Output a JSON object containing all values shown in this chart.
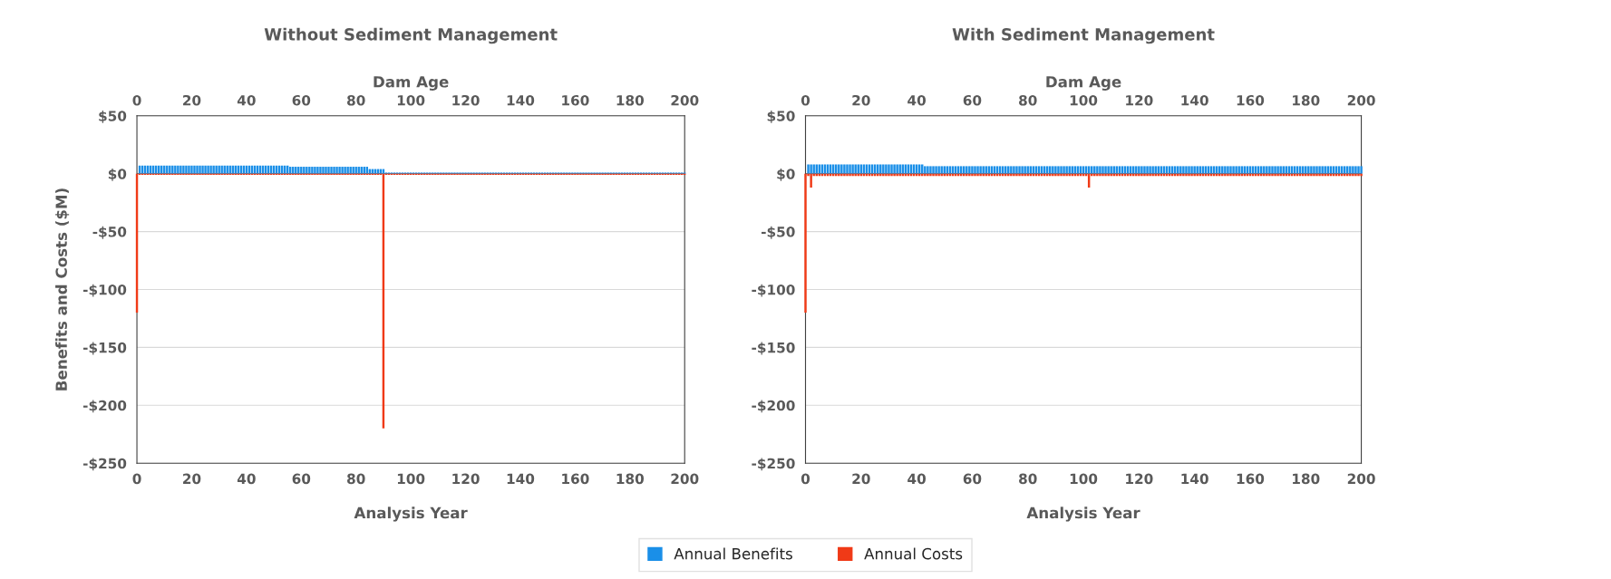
{
  "chart_data": [
    {
      "type": "bar",
      "title": "Without Sediment Management",
      "xlabel": "Analysis Year",
      "x2label": "Dam Age",
      "ylabel": "Benefits and Costs ($M)",
      "x": [
        0,
        1,
        2,
        3,
        4,
        5,
        6,
        7,
        8,
        9,
        10,
        11,
        12,
        13,
        14,
        15,
        16,
        17,
        18,
        19,
        20,
        21,
        22,
        23,
        24,
        25,
        26,
        27,
        28,
        29,
        30,
        31,
        32,
        33,
        34,
        35,
        36,
        37,
        38,
        39,
        40,
        41,
        42,
        43,
        44,
        45,
        46,
        47,
        48,
        49,
        50,
        51,
        52,
        53,
        54,
        55,
        56,
        57,
        58,
        59,
        60,
        61,
        62,
        63,
        64,
        65,
        66,
        67,
        68,
        69,
        70,
        71,
        72,
        73,
        74,
        75,
        76,
        77,
        78,
        79,
        80,
        81,
        82,
        83,
        84,
        85,
        86,
        87,
        88,
        89,
        90,
        91,
        92,
        93,
        94,
        95,
        96,
        97,
        98,
        99,
        100,
        101,
        102,
        103,
        104,
        105,
        106,
        107,
        108,
        109,
        110,
        111,
        112,
        113,
        114,
        115,
        116,
        117,
        118,
        119,
        120,
        121,
        122,
        123,
        124,
        125,
        126,
        127,
        128,
        129,
        130,
        131,
        132,
        133,
        134,
        135,
        136,
        137,
        138,
        139,
        140,
        141,
        142,
        143,
        144,
        145,
        146,
        147,
        148,
        149,
        150,
        151,
        152,
        153,
        154,
        155,
        156,
        157,
        158,
        159,
        160,
        161,
        162,
        163,
        164,
        165,
        166,
        167,
        168,
        169,
        170,
        171,
        172,
        173,
        174,
        175,
        176,
        177,
        178,
        179,
        180,
        181,
        182,
        183,
        184,
        185,
        186,
        187,
        188,
        189,
        190,
        191,
        192,
        193,
        194,
        195,
        196,
        197,
        198,
        199,
        200
      ],
      "series": [
        {
          "name": "Annual Benefits",
          "color": "#1a8fe8",
          "values": [
            null,
            7,
            7,
            7,
            7,
            7,
            7,
            7,
            7,
            7,
            7,
            7,
            7,
            7,
            7,
            7,
            7,
            7,
            7,
            7,
            7,
            7,
            7,
            7,
            7,
            7,
            7,
            7,
            7,
            7,
            7,
            7,
            7,
            7,
            7,
            7,
            7,
            7,
            7,
            7,
            7,
            7,
            7,
            7,
            7,
            7,
            7,
            7,
            7,
            7,
            7,
            7,
            7,
            7,
            7,
            7,
            6,
            6,
            6,
            6,
            6,
            6,
            6,
            6,
            6,
            6,
            6,
            6,
            6,
            6,
            6,
            6,
            6,
            6,
            6,
            6,
            6,
            6,
            6,
            6,
            6,
            6,
            6,
            6,
            6,
            4,
            4,
            4,
            4,
            4,
            4,
            1,
            1,
            1,
            1,
            1,
            1,
            1,
            1,
            1,
            1,
            1,
            1,
            1,
            1,
            1,
            1,
            1,
            1,
            1,
            1,
            1,
            1,
            1,
            1,
            1,
            1,
            1,
            1,
            1,
            1,
            1,
            1,
            1,
            1,
            1,
            1,
            1,
            1,
            1,
            1,
            1,
            1,
            1,
            1,
            1,
            1,
            1,
            1,
            1,
            1,
            1,
            1,
            1,
            1,
            1,
            1,
            1,
            1,
            1,
            1,
            1,
            1,
            1,
            1,
            1,
            1,
            1,
            1,
            1,
            1,
            1,
            1,
            1,
            1,
            1,
            1,
            1,
            1,
            1,
            1,
            1,
            1,
            1,
            1,
            1,
            1,
            1,
            1,
            1,
            1,
            1,
            1,
            1,
            1,
            1,
            1,
            1,
            1,
            1,
            1,
            1,
            1,
            1,
            1,
            1,
            1,
            1,
            1,
            1,
            1
          ]
        },
        {
          "name": "Annual Costs",
          "color": "#f03a17",
          "values": [
            -120,
            -1,
            -1,
            -1,
            -1,
            -1,
            -1,
            -1,
            -1,
            -1,
            -1,
            -1,
            -1,
            -1,
            -1,
            -1,
            -1,
            -1,
            -1,
            -1,
            -1,
            -1,
            -1,
            -1,
            -1,
            -1,
            -1,
            -1,
            -1,
            -1,
            -1,
            -1,
            -1,
            -1,
            -1,
            -1,
            -1,
            -1,
            -1,
            -1,
            -1,
            -1,
            -1,
            -1,
            -1,
            -1,
            -1,
            -1,
            -1,
            -1,
            -1,
            -1,
            -1,
            -1,
            -1,
            -1,
            -1,
            -1,
            -1,
            -1,
            -1,
            -1,
            -1,
            -1,
            -1,
            -1,
            -1,
            -1,
            -1,
            -1,
            -1,
            -1,
            -1,
            -1,
            -1,
            -1,
            -1,
            -1,
            -1,
            -1,
            -1,
            -1,
            -1,
            -1,
            -1,
            -1,
            -1,
            -1,
            -1,
            -1,
            -220,
            -1,
            -1,
            -1,
            -1,
            -1,
            -1,
            -1,
            -1,
            -1,
            -1,
            -1,
            -1,
            -1,
            -1,
            -1,
            -1,
            -1,
            -1,
            -1,
            -1,
            -1,
            -1,
            -1,
            -1,
            -1,
            -1,
            -1,
            -1,
            -1,
            -1,
            -1,
            -1,
            -1,
            -1,
            -1,
            -1,
            -1,
            -1,
            -1,
            -1,
            -1,
            -1,
            -1,
            -1,
            -1,
            -1,
            -1,
            -1,
            -1,
            -1,
            -1,
            -1,
            -1,
            -1,
            -1,
            -1,
            -1,
            -1,
            -1,
            -1,
            -1,
            -1,
            -1,
            -1,
            -1,
            -1,
            -1,
            -1,
            -1,
            -1,
            -1,
            -1,
            -1,
            -1,
            -1,
            -1,
            -1,
            -1,
            -1,
            -1,
            -1,
            -1,
            -1,
            -1,
            -1,
            -1,
            -1,
            -1,
            -1,
            -1,
            -1,
            -1,
            -1,
            -1,
            -1,
            -1,
            -1,
            -1,
            -1,
            -1,
            -1,
            -1,
            -1,
            -1,
            -1,
            -1,
            -1,
            -1,
            -1,
            -1
          ]
        }
      ],
      "xlim": [
        0,
        200
      ],
      "xticks": [
        0,
        20,
        40,
        60,
        80,
        100,
        120,
        140,
        160,
        180,
        200
      ],
      "x2lim": [
        0,
        200
      ],
      "x2ticks": [
        0,
        20,
        40,
        60,
        80,
        100,
        120,
        140,
        160,
        180,
        200
      ],
      "ylim": [
        -250,
        50
      ],
      "yticks": [
        {
          "value": -250,
          "label": "-$250"
        },
        {
          "value": -200,
          "label": "-$200"
        },
        {
          "value": -150,
          "label": "-$150"
        },
        {
          "value": -100,
          "label": "-$100"
        },
        {
          "value": -50,
          "label": "-$50"
        },
        {
          "value": 0,
          "label": "$0"
        },
        {
          "value": 50,
          "label": "$50"
        }
      ],
      "grid": "y",
      "legend": "bottom",
      "stacked": true
    },
    {
      "type": "bar",
      "title": "With Sediment Management",
      "xlabel": "Analysis Year",
      "x2label": "Dam Age",
      "x": [
        0,
        1,
        2,
        3,
        4,
        5,
        6,
        7,
        8,
        9,
        10,
        11,
        12,
        13,
        14,
        15,
        16,
        17,
        18,
        19,
        20,
        21,
        22,
        23,
        24,
        25,
        26,
        27,
        28,
        29,
        30,
        31,
        32,
        33,
        34,
        35,
        36,
        37,
        38,
        39,
        40,
        41,
        42,
        43,
        44,
        45,
        46,
        47,
        48,
        49,
        50,
        51,
        52,
        53,
        54,
        55,
        56,
        57,
        58,
        59,
        60,
        61,
        62,
        63,
        64,
        65,
        66,
        67,
        68,
        69,
        70,
        71,
        72,
        73,
        74,
        75,
        76,
        77,
        78,
        79,
        80,
        81,
        82,
        83,
        84,
        85,
        86,
        87,
        88,
        89,
        90,
        91,
        92,
        93,
        94,
        95,
        96,
        97,
        98,
        99,
        100,
        101,
        102,
        103,
        104,
        105,
        106,
        107,
        108,
        109,
        110,
        111,
        112,
        113,
        114,
        115,
        116,
        117,
        118,
        119,
        120,
        121,
        122,
        123,
        124,
        125,
        126,
        127,
        128,
        129,
        130,
        131,
        132,
        133,
        134,
        135,
        136,
        137,
        138,
        139,
        140,
        141,
        142,
        143,
        144,
        145,
        146,
        147,
        148,
        149,
        150,
        151,
        152,
        153,
        154,
        155,
        156,
        157,
        158,
        159,
        160,
        161,
        162,
        163,
        164,
        165,
        166,
        167,
        168,
        169,
        170,
        171,
        172,
        173,
        174,
        175,
        176,
        177,
        178,
        179,
        180,
        181,
        182,
        183,
        184,
        185,
        186,
        187,
        188,
        189,
        190,
        191,
        192,
        193,
        194,
        195,
        196,
        197,
        198,
        199,
        200
      ],
      "series": [
        {
          "name": "Annual Benefits",
          "color": "#1a8fe8",
          "values": [
            null,
            8,
            8,
            8,
            8,
            8,
            8,
            8,
            8,
            8,
            8,
            8,
            8,
            8,
            8,
            8,
            8,
            8,
            8,
            8,
            8,
            8,
            8,
            8,
            8,
            8,
            8,
            8,
            8,
            8,
            8,
            8,
            8,
            8,
            8,
            8,
            8,
            8,
            8,
            8,
            8,
            8,
            8,
            6.5,
            6.5,
            6.5,
            6.5,
            6.5,
            6.5,
            6.5,
            6.5,
            6.5,
            6.5,
            6.5,
            6.5,
            6.5,
            6.5,
            6.5,
            6.5,
            6.5,
            6.5,
            6.5,
            6.5,
            6.5,
            6.5,
            6.5,
            6.5,
            6.5,
            6.5,
            6.5,
            6.5,
            6.5,
            6.5,
            6.5,
            6.5,
            6.5,
            6.5,
            6.5,
            6.5,
            6.5,
            6.5,
            6.5,
            6.5,
            6.5,
            6.5,
            6.5,
            6.5,
            6.5,
            6.5,
            6.5,
            6.5,
            6.5,
            6.5,
            6.5,
            6.5,
            6.5,
            6.5,
            6.5,
            6.5,
            6.5,
            6.5,
            6.5,
            6.5,
            6.5,
            6.5,
            6.5,
            6.5,
            6.5,
            6.5,
            6.5,
            6.5,
            6.5,
            6.5,
            6.5,
            6.5,
            6.5,
            6.5,
            6.5,
            6.5,
            6.5,
            6.5,
            6.5,
            6.5,
            6.5,
            6.5,
            6.5,
            6.5,
            6.5,
            6.5,
            6.5,
            6.5,
            6.5,
            6.5,
            6.5,
            6.5,
            6.5,
            6.5,
            6.5,
            6.5,
            6.5,
            6.5,
            6.5,
            6.5,
            6.5,
            6.5,
            6.5,
            6.5,
            6.5,
            6.5,
            6.5,
            6.5,
            6.5,
            6.5,
            6.5,
            6.5,
            6.5,
            6.5,
            6.5,
            6.5,
            6.5,
            6.5,
            6.5,
            6.5,
            6.5,
            6.5,
            6.5,
            6.5,
            6.5,
            6.5,
            6.5,
            6.5,
            6.5,
            6.5,
            6.5,
            6.5,
            6.5,
            6.5,
            6.5,
            6.5,
            6.5,
            6.5,
            6.5,
            6.5,
            6.5,
            6.5,
            6.5,
            6.5,
            6.5,
            6.5,
            6.5,
            6.5,
            6.5,
            6.5,
            6.5,
            6.5,
            6.5,
            6.5,
            6.5,
            6.5,
            6.5,
            6.5
          ]
        },
        {
          "name": "Annual Costs",
          "color": "#f03a17",
          "values": [
            -120,
            -2,
            -12,
            -2,
            -2,
            -2,
            -2,
            -2,
            -2,
            -2,
            -2,
            -2,
            -2,
            -2,
            -2,
            -2,
            -2,
            -2,
            -2,
            -2,
            -2,
            -2,
            -2,
            -2,
            -2,
            -2,
            -2,
            -2,
            -2,
            -2,
            -2,
            -2,
            -2,
            -2,
            -2,
            -2,
            -2,
            -2,
            -2,
            -2,
            -2,
            -2,
            -2,
            -2,
            -2,
            -2,
            -2,
            -2,
            -2,
            -2,
            -2,
            -2,
            -2,
            -2,
            -2,
            -2,
            -2,
            -2,
            -2,
            -2,
            -2,
            -2,
            -2,
            -2,
            -2,
            -2,
            -2,
            -2,
            -2,
            -2,
            -2,
            -2,
            -2,
            -2,
            -2,
            -2,
            -2,
            -2,
            -2,
            -2,
            -2,
            -2,
            -2,
            -2,
            -2,
            -2,
            -2,
            -2,
            -2,
            -2,
            -2,
            -2,
            -2,
            -2,
            -2,
            -2,
            -2,
            -2,
            -2,
            -2,
            -2,
            -2,
            -12,
            -2,
            -2,
            -2,
            -2,
            -2,
            -2,
            -2,
            -2,
            -2,
            -2,
            -2,
            -2,
            -2,
            -2,
            -2,
            -2,
            -2,
            -2,
            -2,
            -2,
            -2,
            -2,
            -2,
            -2,
            -2,
            -2,
            -2,
            -2,
            -2,
            -2,
            -2,
            -2,
            -2,
            -2,
            -2,
            -2,
            -2,
            -2,
            -2,
            -2,
            -2,
            -2,
            -2,
            -2,
            -2,
            -2,
            -2,
            -2,
            -2,
            -2,
            -2,
            -2,
            -2,
            -2,
            -2,
            -2,
            -2,
            -2,
            -2,
            -2,
            -2,
            -2,
            -2,
            -2,
            -2,
            -2,
            -2,
            -2,
            -2,
            -2,
            -2,
            -2,
            -2,
            -2,
            -2,
            -2,
            -2,
            -2,
            -2,
            -2,
            -2,
            -2,
            -2,
            -2,
            -2,
            -2,
            -2,
            -2,
            -2,
            -2,
            -2,
            -2,
            -2,
            -2,
            -2,
            -2,
            -2,
            -2
          ]
        }
      ],
      "xlim": [
        0,
        200
      ],
      "xticks": [
        0,
        20,
        40,
        60,
        80,
        100,
        120,
        140,
        160,
        180,
        200
      ],
      "x2lim": [
        0,
        200
      ],
      "x2ticks": [
        0,
        20,
        40,
        60,
        80,
        100,
        120,
        140,
        160,
        180,
        200
      ],
      "ylim": [
        -250,
        50
      ],
      "yticks": [
        {
          "value": -250,
          "label": "-$250"
        },
        {
          "value": -200,
          "label": "-$200"
        },
        {
          "value": -150,
          "label": "-$150"
        },
        {
          "value": -100,
          "label": "-$100"
        },
        {
          "value": -50,
          "label": "-$50"
        },
        {
          "value": 0,
          "label": "$0"
        },
        {
          "value": 50,
          "label": "$50"
        }
      ],
      "grid": "y",
      "legend": "bottom",
      "stacked": true
    }
  ]
}
